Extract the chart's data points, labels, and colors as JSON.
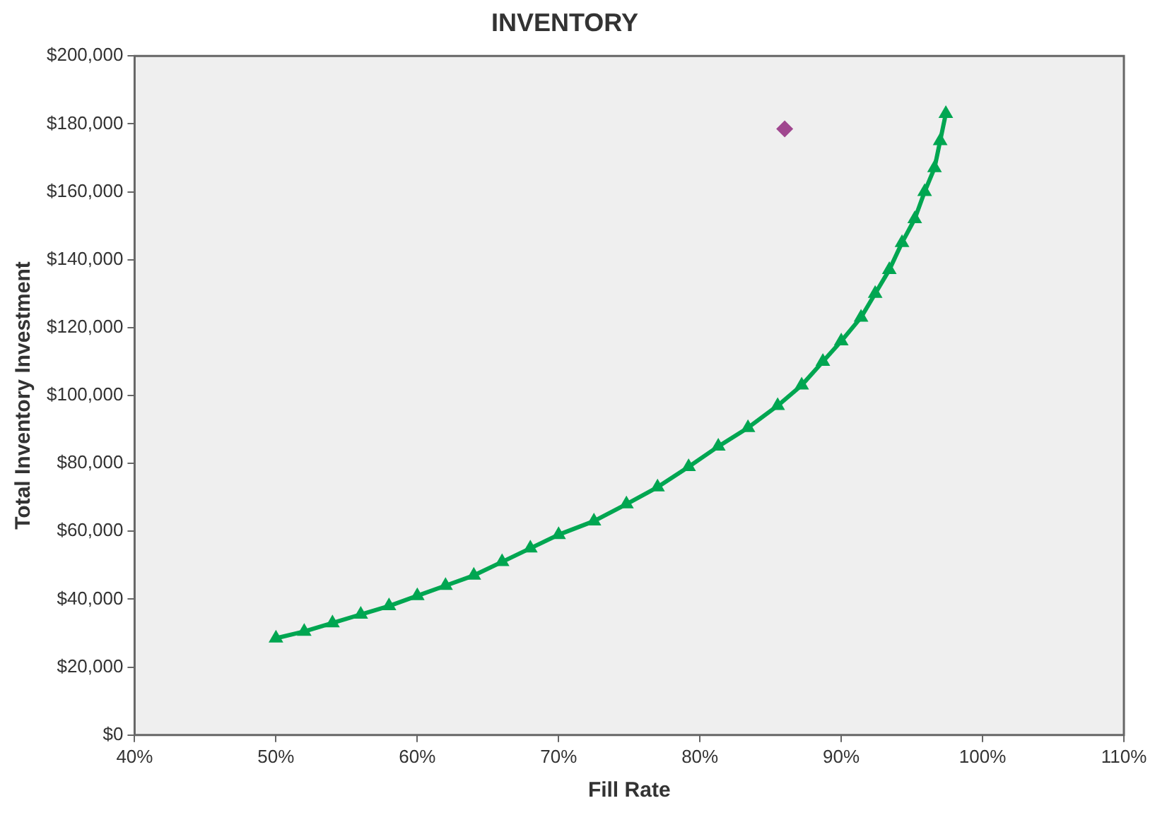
{
  "chart_data": {
    "type": "line",
    "title": "INVENTORY",
    "xlabel": "Fill Rate",
    "ylabel": "Total Inventory Investment",
    "xlim": [
      40,
      110
    ],
    "xticks": [
      {
        "value": 40,
        "label": "40%"
      },
      {
        "value": 50,
        "label": "50%"
      },
      {
        "value": 60,
        "label": "60%"
      },
      {
        "value": 70,
        "label": "70%"
      },
      {
        "value": 80,
        "label": "80%"
      },
      {
        "value": 90,
        "label": "90%"
      },
      {
        "value": 100,
        "label": "100%"
      },
      {
        "value": 110,
        "label": "110%"
      }
    ],
    "ylim": [
      0,
      200000
    ],
    "yticks": [
      {
        "value": 0,
        "label": "$0"
      },
      {
        "value": 20000,
        "label": "$20,000"
      },
      {
        "value": 40000,
        "label": "$40,000"
      },
      {
        "value": 60000,
        "label": "$60,000"
      },
      {
        "value": 80000,
        "label": "$80,000"
      },
      {
        "value": 100000,
        "label": "$100,000"
      },
      {
        "value": 120000,
        "label": "$120,000"
      },
      {
        "value": 140000,
        "label": "$140,000"
      },
      {
        "value": 160000,
        "label": "$160,000"
      },
      {
        "value": 180000,
        "label": "$180,000"
      },
      {
        "value": 200000,
        "label": "$200,000"
      }
    ],
    "grid": false,
    "legend": false,
    "series": [
      {
        "color": "#00a651",
        "marker": "triangle",
        "line_style": "solid",
        "x": [
          50,
          52,
          54,
          56,
          58,
          60,
          62,
          64,
          66,
          68,
          70,
          72.5,
          74.8,
          77,
          79.2,
          81.3,
          83.4,
          85.5,
          87.2,
          88.7,
          90,
          91.4,
          92.4,
          93.4,
          94.3,
          95.2,
          95.9,
          96.6,
          97,
          97.4
        ],
        "values": [
          28500,
          30500,
          33000,
          35500,
          38000,
          41000,
          44000,
          47000,
          51000,
          55000,
          59000,
          63000,
          68000,
          73000,
          79000,
          85000,
          90500,
          97000,
          103000,
          110000,
          116000,
          123000,
          130000,
          137000,
          145000,
          152000,
          160000,
          167000,
          175000,
          183000
        ]
      },
      {
        "type": "scatter",
        "color": "#a0478f",
        "marker": "diamond",
        "x": [
          86
        ],
        "values": [
          178500
        ]
      }
    ]
  }
}
